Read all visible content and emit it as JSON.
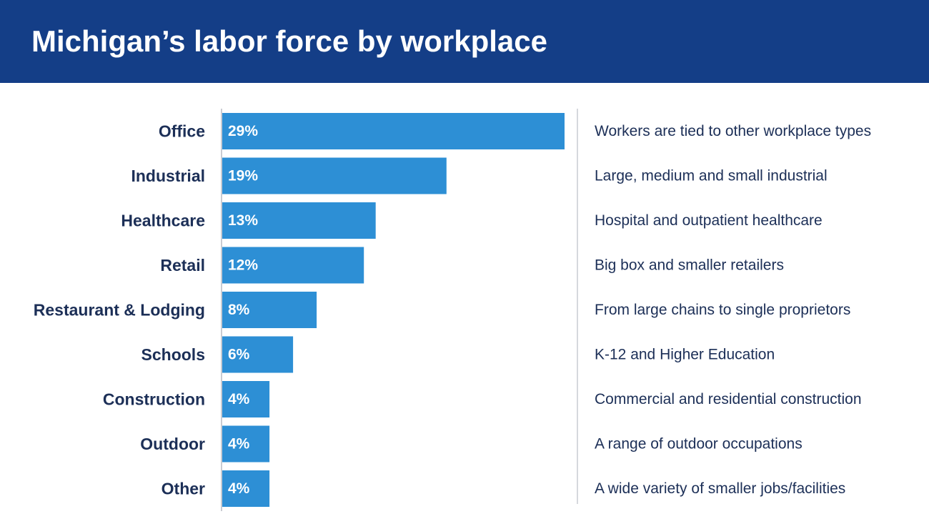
{
  "title": "Michigan’s labor force by workplace",
  "colors": {
    "header_bg": "#143e87",
    "bar": "#2d8fd5",
    "text": "#1c2f57",
    "axis": "#b8bcc4",
    "divider": "#c9ccd2"
  },
  "chart_data": {
    "type": "bar",
    "orientation": "horizontal",
    "title": "Michigan’s labor force by workplace",
    "categories": [
      "Office",
      "Industrial",
      "Healthcare",
      "Retail",
      "Restaurant & Lodging",
      "Schools",
      "Construction",
      "Outdoor",
      "Other"
    ],
    "values": [
      29,
      19,
      13,
      12,
      8,
      6,
      4,
      4,
      4
    ],
    "value_labels": [
      "29%",
      "19%",
      "13%",
      "12%",
      "8%",
      "6%",
      "4%",
      "4%",
      "4%"
    ],
    "descriptions": [
      "Workers are tied to other workplace types",
      "Large, medium and small industrial",
      "Hospital and outpatient healthcare",
      "Big box and smaller retailers",
      "From large chains to single proprietors",
      "K-12 and Higher Education",
      "Commercial and residential construction",
      "A range of outdoor occupations",
      "A wide variety of smaller jobs/facilities"
    ],
    "unit": "%",
    "xlim": [
      0,
      29
    ],
    "grid": false,
    "legend": "none"
  }
}
